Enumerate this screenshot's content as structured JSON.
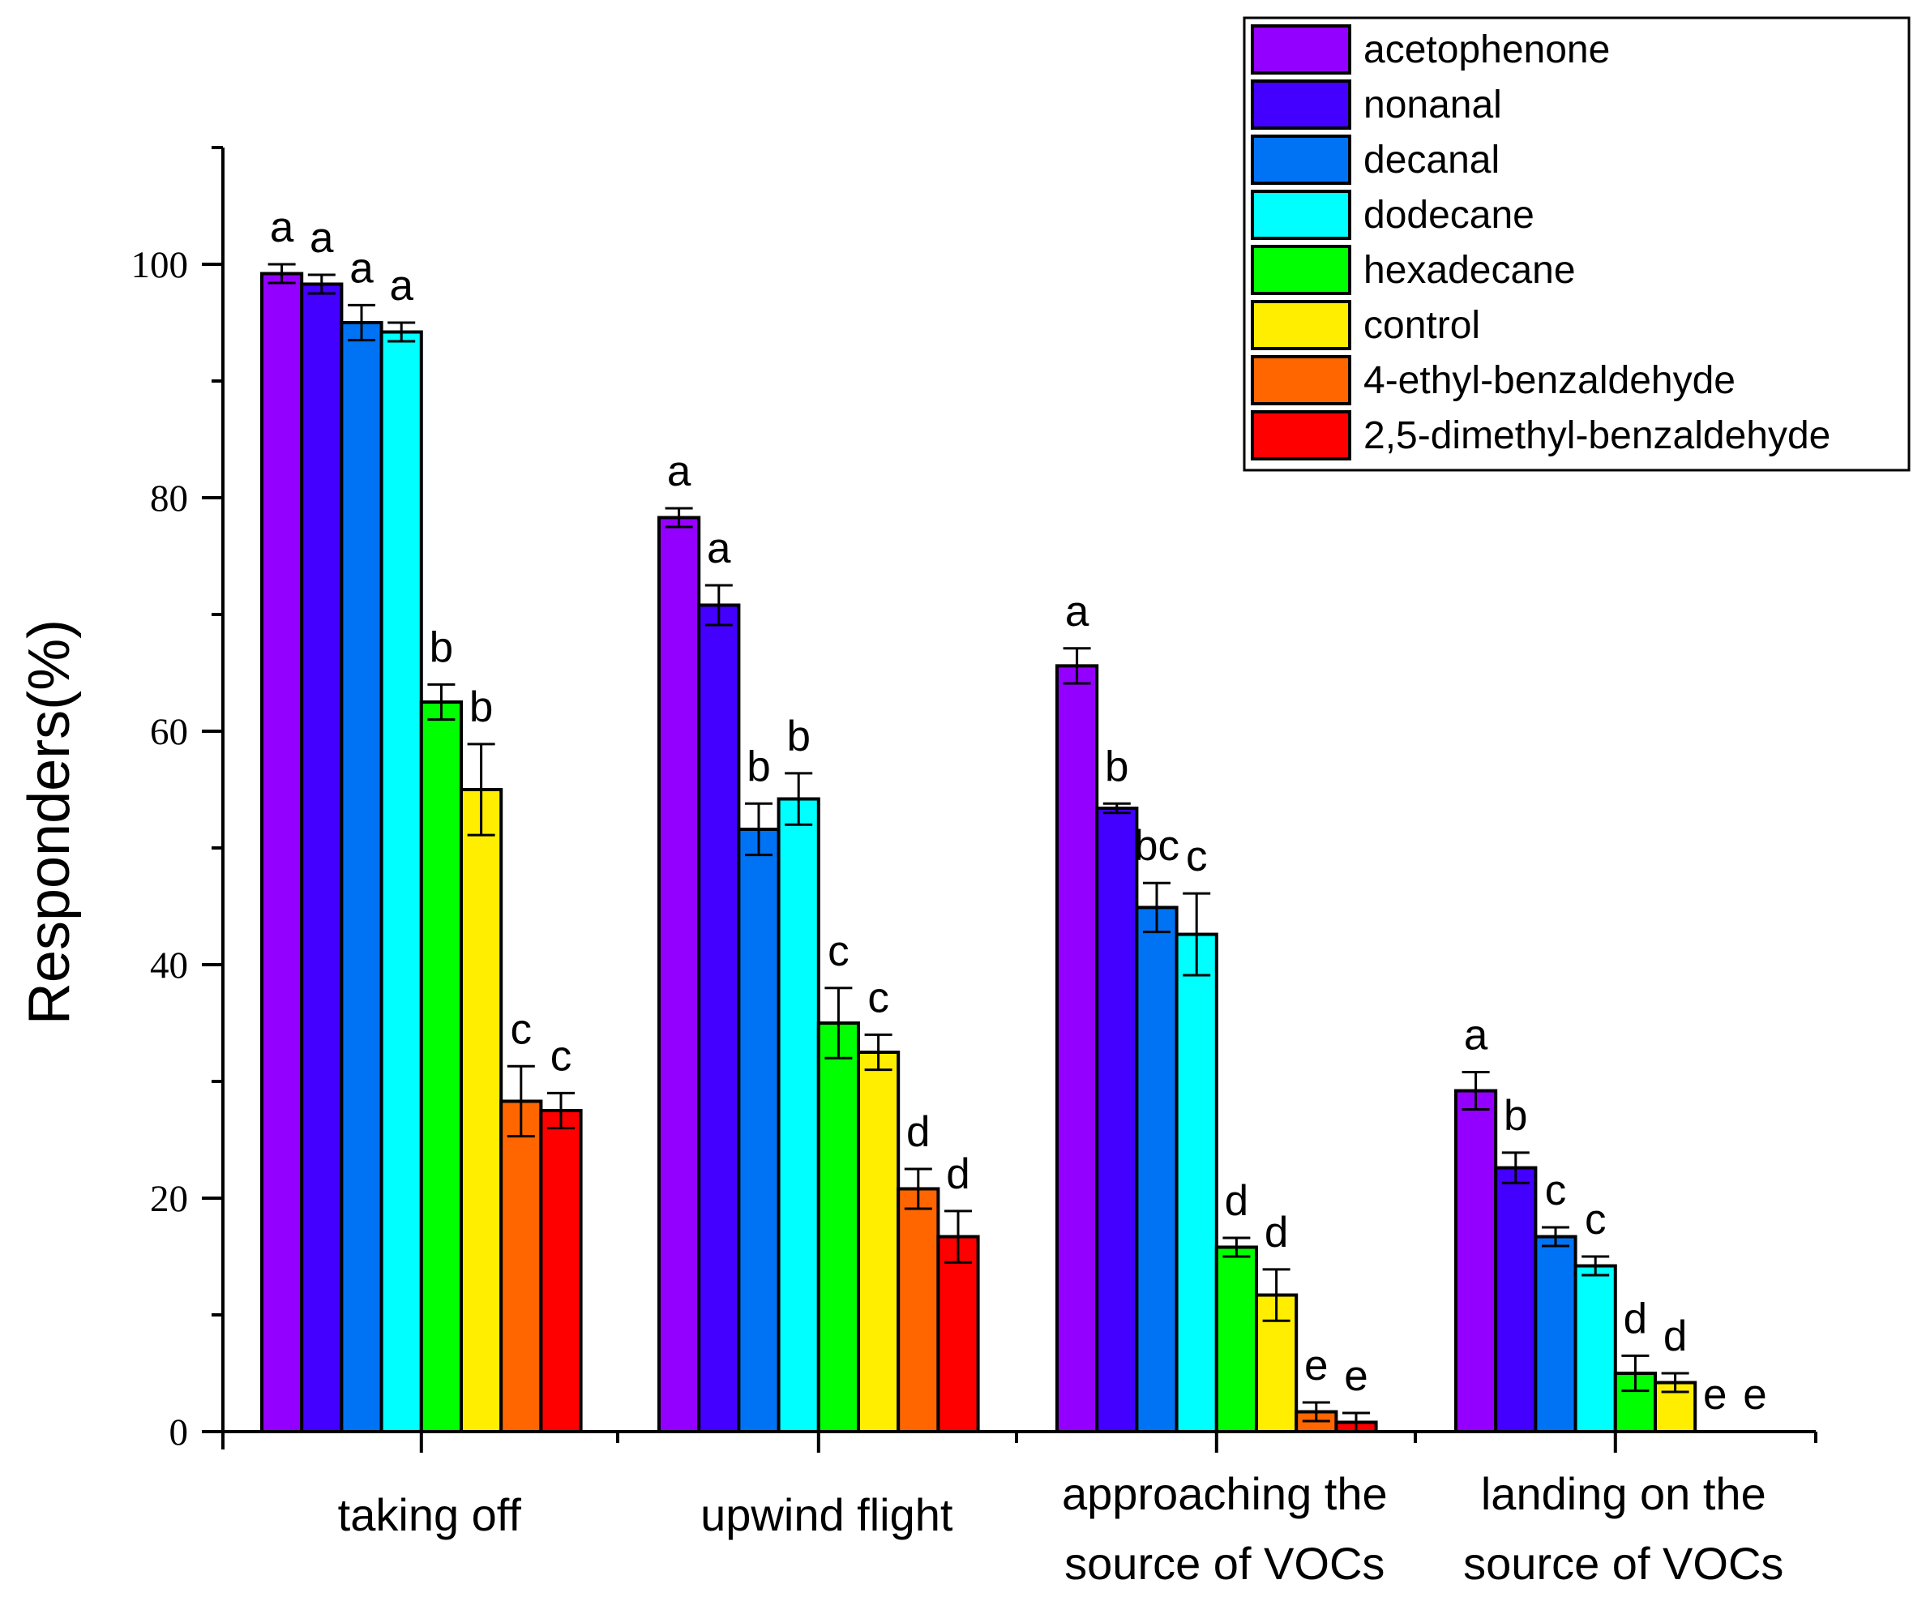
{
  "chart_data": {
    "type": "bar",
    "ylabel": "Responders(%)",
    "xlabel": "",
    "ylim": [
      0,
      110
    ],
    "yticks": [
      0,
      20,
      40,
      60,
      80,
      100
    ],
    "legend_position": "top-right",
    "categories": [
      [
        "taking off"
      ],
      [
        "upwind flight"
      ],
      [
        "approaching the",
        "source of VOCs"
      ],
      [
        "landing on the",
        "source of VOCs"
      ]
    ],
    "series": [
      {
        "name": "acetophenone",
        "color": "#9400ff",
        "values": [
          99.2,
          78.3,
          65.6,
          29.2
        ],
        "errors": [
          0.8,
          0.8,
          1.5,
          1.6
        ],
        "letters": [
          "a",
          "a",
          "a",
          "a"
        ]
      },
      {
        "name": "nonanal",
        "color": "#4400ff",
        "values": [
          98.3,
          70.8,
          53.4,
          22.6
        ],
        "errors": [
          0.8,
          1.7,
          0.4,
          1.3
        ],
        "letters": [
          "a",
          "a",
          "b",
          "b"
        ]
      },
      {
        "name": "decanal",
        "color": "#0073f5",
        "values": [
          95.0,
          51.6,
          44.9,
          16.7
        ],
        "errors": [
          1.5,
          2.2,
          2.1,
          0.8
        ],
        "letters": [
          "a",
          "b",
          "bc",
          "c"
        ]
      },
      {
        "name": "dodecane",
        "color": "#00ffff",
        "values": [
          94.2,
          54.2,
          42.6,
          14.2
        ],
        "errors": [
          0.8,
          2.2,
          3.5,
          0.8
        ],
        "letters": [
          "a",
          "b",
          "c",
          "c"
        ]
      },
      {
        "name": "hexadecane",
        "color": "#00ff00",
        "values": [
          62.5,
          35.0,
          15.8,
          5.0
        ],
        "errors": [
          1.5,
          3.0,
          0.8,
          1.5
        ],
        "letters": [
          "b",
          "c",
          "d",
          "d"
        ]
      },
      {
        "name": "control",
        "color": "#ffee00",
        "values": [
          55.0,
          32.5,
          11.7,
          4.2
        ],
        "errors": [
          3.9,
          1.5,
          2.2,
          0.8
        ],
        "letters": [
          "b",
          "c",
          "d",
          "d"
        ]
      },
      {
        "name": "4-ethyl-benzaldehyde",
        "color": "#ff6600",
        "values": [
          28.3,
          20.8,
          1.7,
          0.0
        ],
        "errors": [
          3.0,
          1.7,
          0.8,
          0.0
        ],
        "letters": [
          "c",
          "d",
          "e",
          "e"
        ]
      },
      {
        "name": "2,5-dimethyl-benzaldehyde",
        "color": "#ff0000",
        "values": [
          27.5,
          16.7,
          0.8,
          0.0
        ],
        "errors": [
          1.5,
          2.2,
          0.8,
          0.0
        ],
        "letters": [
          "c",
          "d",
          "e",
          "e"
        ]
      }
    ]
  }
}
